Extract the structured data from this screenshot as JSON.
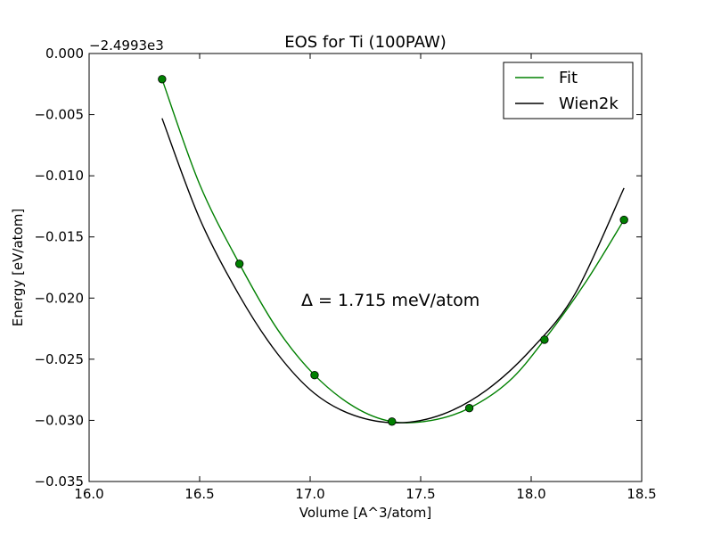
{
  "chart_data": {
    "type": "line",
    "title": "EOS for Ti (100PAW)",
    "xlabel": "Volume [A^3/atom]",
    "ylabel": "Energy [eV/atom]",
    "offset_text": "−2.4993e3",
    "annotation": "Δ = 1.715 meV/atom",
    "xlim": [
      16.0,
      18.5
    ],
    "ylim": [
      -0.035,
      0.0
    ],
    "x_ticks": [
      16.0,
      16.5,
      17.0,
      17.5,
      18.0,
      18.5
    ],
    "x_tick_labels": [
      "16.0",
      "16.5",
      "17.0",
      "17.5",
      "18.0",
      "18.5"
    ],
    "y_ticks": [
      0.0,
      -0.005,
      -0.01,
      -0.015,
      -0.02,
      -0.025,
      -0.03,
      -0.035
    ],
    "y_tick_labels": [
      "0.000",
      "−0.005",
      "−0.010",
      "−0.015",
      "−0.020",
      "−0.025",
      "−0.030",
      "−0.035"
    ],
    "legend_position": "top-right",
    "grid": false,
    "series": [
      {
        "name": "Fit",
        "color": "#008000",
        "style": "line",
        "x": [
          16.33,
          16.5,
          16.68,
          16.85,
          17.02,
          17.2,
          17.37,
          17.55,
          17.72,
          17.9,
          18.06,
          18.25,
          18.42
        ],
        "y": [
          -0.0021,
          -0.0107,
          -0.0172,
          -0.0225,
          -0.0263,
          -0.0289,
          -0.0301,
          -0.03,
          -0.029,
          -0.0268,
          -0.0234,
          -0.0186,
          -0.0136
        ]
      },
      {
        "name": "Wien2k",
        "color": "#000000",
        "style": "line",
        "x": [
          16.33,
          16.5,
          16.68,
          16.85,
          17.02,
          17.2,
          17.4,
          17.6,
          17.8,
          18.0,
          18.2,
          18.42
        ],
        "y": [
          -0.0053,
          -0.0135,
          -0.0198,
          -0.0245,
          -0.0278,
          -0.0296,
          -0.0302,
          -0.0295,
          -0.0275,
          -0.0242,
          -0.0196,
          -0.011
        ]
      },
      {
        "name": "",
        "color": "#008000",
        "style": "markers",
        "x": [
          16.33,
          16.68,
          17.02,
          17.37,
          17.72,
          18.06,
          18.42
        ],
        "y": [
          -0.0021,
          -0.0172,
          -0.0263,
          -0.0301,
          -0.029,
          -0.0234,
          -0.0136
        ]
      }
    ]
  }
}
